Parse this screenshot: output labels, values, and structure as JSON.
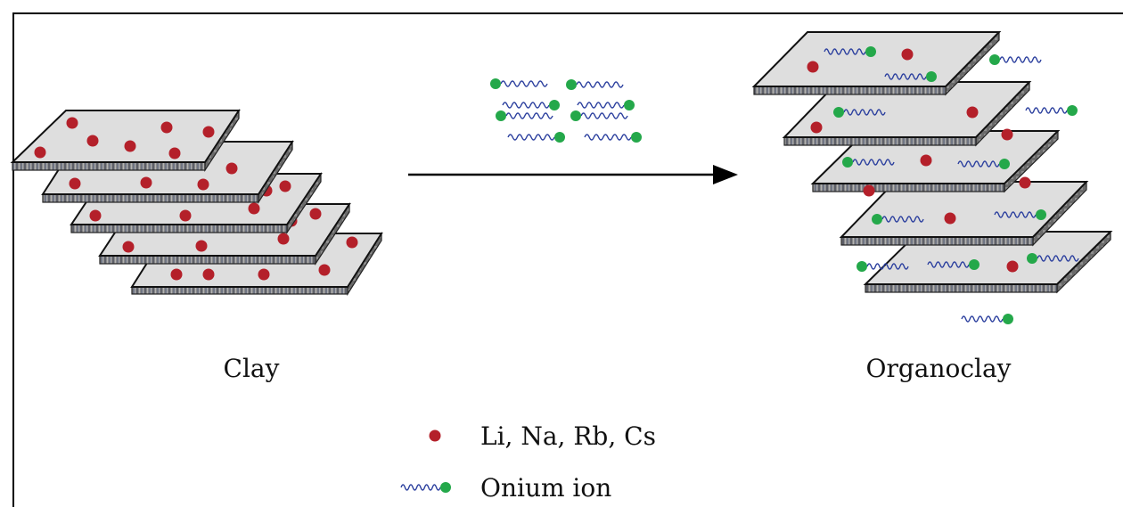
{
  "labels": {
    "clay": "Clay",
    "organoclay": "Organoclay"
  },
  "legend": {
    "cation_label": "Li, Na, Rb, Cs",
    "onium_label": "Onium ion"
  },
  "colors": {
    "cation": "#b4202a",
    "onium_head": "#24a84a",
    "onium_tail": "#2b3f9e",
    "sheet_face": "#dedede",
    "sheet_edge": "#7c7c7c",
    "frame": "#000000"
  }
}
